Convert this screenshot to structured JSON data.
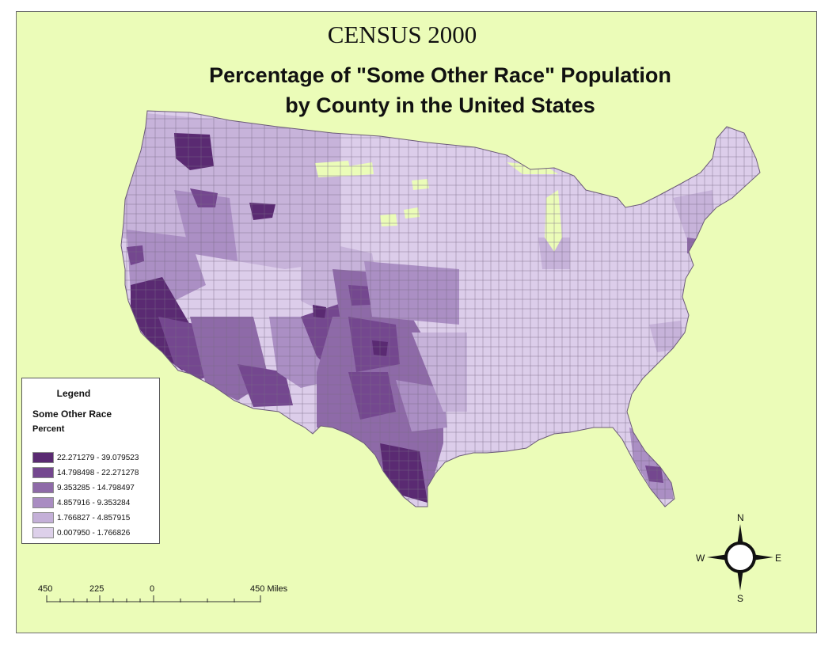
{
  "header": {
    "census": "CENSUS 2000",
    "title_line1": "Percentage of \"Some Other Race\" Population",
    "title_line2": "by County in the United States"
  },
  "legend": {
    "title": "Legend",
    "subtitle": "Some Other Race",
    "unit": "Percent",
    "classes": [
      {
        "label": "22.271279 - 39.079523",
        "color": "#5a2a72"
      },
      {
        "label": "14.798498 - 22.271278",
        "color": "#74478f"
      },
      {
        "label": "9.353285 - 14.798497",
        "color": "#8e6aa8"
      },
      {
        "label": "4.857916 - 9.353284",
        "color": "#a98cc2"
      },
      {
        "label": "1.766827 - 4.857915",
        "color": "#c4b0d8"
      },
      {
        "label": "0.007950 - 1.766826",
        "color": "#ddd0ea"
      }
    ]
  },
  "scale_bar": {
    "labels": [
      "450",
      "225",
      "0",
      "450 Miles"
    ]
  },
  "compass": {
    "n": "N",
    "s": "S",
    "e": "E",
    "w": "W"
  },
  "colors": {
    "background": "#ebfcb8",
    "nodata": "#ebfcb8",
    "county_border": "#7a6a86"
  }
}
